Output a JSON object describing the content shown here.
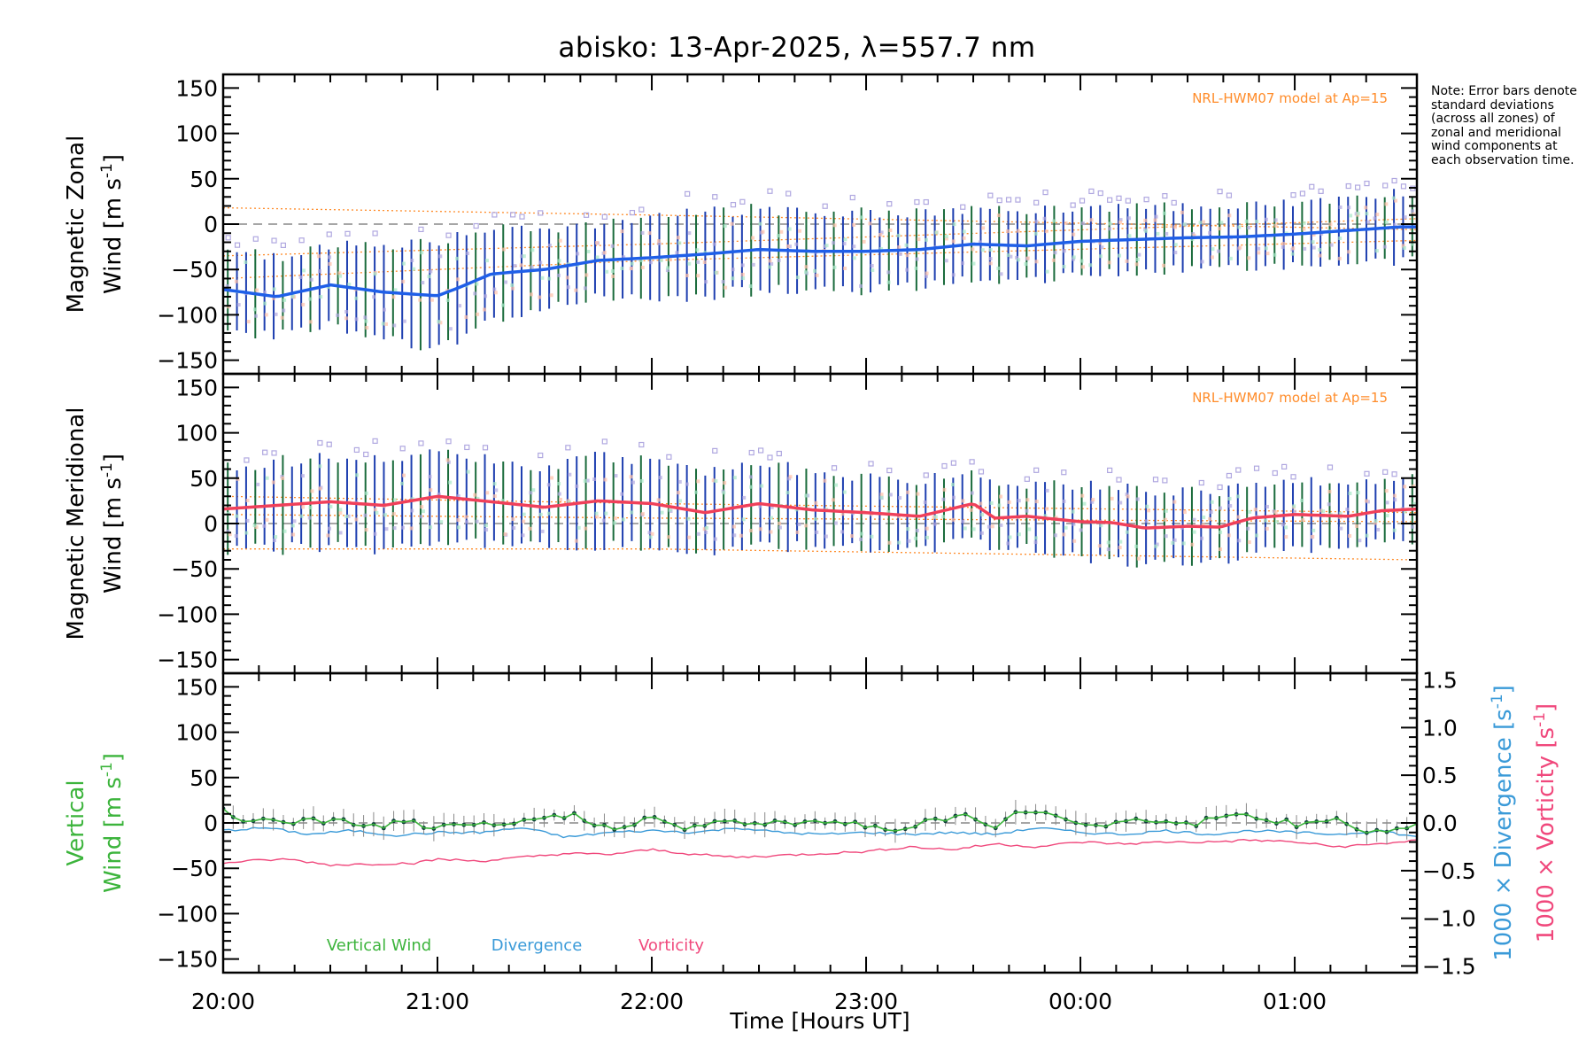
{
  "title": "abisko: 13-Apr-2025, λ=557.7 nm",
  "note": "Note: Error bars denote standard deviations (across all zones) of zonal and meridional wind components at each observation time.",
  "xlabel": "Time [Hours UT]",
  "colors": {
    "zonal": "#1f5fe8",
    "meridional": "#f0405a",
    "vertical": "#3cb43c",
    "divergence": "#3a9ad8",
    "vorticity": "#f0487c",
    "errbar": "#1e3fb0",
    "errbar_alt": "#1a6b3c",
    "model": "#ff8c2a",
    "scatter": "#b0a8e0"
  },
  "chart_data": [
    {
      "type": "line",
      "panel": "zonal",
      "ylabel_line1": "Magnetic Zonal",
      "ylabel_line2": "Wind [m s",
      "ylabel_sup": "-1",
      "ylabel_end": "]",
      "ylim": [
        -165,
        165
      ],
      "yticks": [
        -150,
        -100,
        -50,
        0,
        50,
        100,
        150
      ],
      "xlim": [
        20.0,
        25.57
      ],
      "xticks": [
        20,
        21,
        22,
        23,
        24,
        25
      ],
      "xticklabels": [
        "20:00",
        "21:00",
        "22:00",
        "23:00",
        "00:00",
        "01:00"
      ],
      "model_label": "NRL-HWM07 model at Ap=15",
      "zero_dashed": true,
      "series": [
        {
          "kind": "mean",
          "x": [
            20.0,
            20.25,
            20.5,
            20.75,
            21.0,
            21.1,
            21.25,
            21.5,
            21.75,
            22.0,
            22.25,
            22.5,
            22.75,
            23.0,
            23.25,
            23.5,
            23.75,
            24.0,
            24.25,
            24.5,
            24.75,
            25.0,
            25.25,
            25.5
          ],
          "y": [
            -72,
            -80,
            -67,
            -75,
            -79,
            -70,
            -55,
            -50,
            -40,
            -37,
            -33,
            -28,
            -30,
            -30,
            -28,
            -22,
            -24,
            -19,
            -17,
            -15,
            -14,
            -11,
            -7,
            -3
          ],
          "err": [
            45,
            42,
            45,
            50,
            55,
            58,
            48,
            45,
            42,
            45,
            45,
            45,
            45,
            42,
            40,
            38,
            38,
            36,
            35,
            35,
            35,
            35,
            35,
            38
          ]
        },
        {
          "kind": "model",
          "curves": [
            {
              "x": [
                20.0,
                22.0,
                25.57
              ],
              "y": [
                18,
                10,
                -6
              ]
            },
            {
              "x": [
                20.0,
                22.0,
                25.57
              ],
              "y": [
                -35,
                -22,
                6
              ]
            },
            {
              "x": [
                20.0,
                22.0,
                25.57
              ],
              "y": [
                -60,
                -40,
                -18
              ]
            }
          ]
        }
      ]
    },
    {
      "type": "line",
      "panel": "meridional",
      "ylabel_line1": "Magnetic Meridional",
      "ylabel_line2": "Wind [m s",
      "ylabel_sup": "-1",
      "ylabel_end": "]",
      "ylim": [
        -165,
        165
      ],
      "yticks": [
        -150,
        -100,
        -50,
        0,
        50,
        100,
        150
      ],
      "xlim": [
        20.0,
        25.57
      ],
      "xticks": [
        20,
        21,
        22,
        23,
        24,
        25
      ],
      "model_label": "NRL-HWM07 model at Ap=15",
      "zero_dashed": true,
      "series": [
        {
          "kind": "mean",
          "x": [
            20.0,
            20.25,
            20.5,
            20.75,
            21.0,
            21.25,
            21.5,
            21.75,
            22.0,
            22.25,
            22.5,
            22.75,
            23.0,
            23.25,
            23.5,
            23.6,
            23.75,
            24.0,
            24.15,
            24.3,
            24.5,
            24.65,
            24.8,
            25.0,
            25.25,
            25.4,
            25.57
          ],
          "y": [
            16,
            20,
            24,
            20,
            30,
            24,
            18,
            25,
            22,
            12,
            22,
            15,
            12,
            8,
            22,
            6,
            8,
            2,
            1,
            -5,
            -3,
            -4,
            6,
            10,
            8,
            14,
            16
          ],
          "err": [
            45,
            48,
            50,
            50,
            52,
            48,
            45,
            50,
            48,
            42,
            48,
            40,
            40,
            38,
            40,
            35,
            35,
            40,
            40,
            40,
            40,
            40,
            38,
            38,
            35,
            35,
            38
          ]
        },
        {
          "kind": "model",
          "curves": [
            {
              "x": [
                20.0,
                22.0,
                25.57
              ],
              "y": [
                -28,
                -28,
                -40
              ]
            },
            {
              "x": [
                20.0,
                22.0,
                25.57
              ],
              "y": [
                10,
                6,
                2
              ]
            },
            {
              "x": [
                20.0,
                22.0,
                25.57
              ],
              "y": [
                30,
                22,
                12
              ]
            }
          ]
        }
      ]
    },
    {
      "type": "line",
      "panel": "vertical",
      "ylabel_line1": "Vertical",
      "ylabel_line2": "Wind [m s",
      "ylabel_sup": "-1",
      "ylabel_end": "]",
      "right_label_div": "1000 × Divergence [s",
      "right_label_vort": "1000 × Vorticity [s",
      "right_sup": "-1",
      "right_end": "]",
      "ylim": [
        -165,
        165
      ],
      "yticks": [
        -150,
        -100,
        -50,
        0,
        50,
        100,
        150
      ],
      "y2lim": [
        -1.57,
        1.57
      ],
      "y2ticks": [
        -1.5,
        -1.0,
        -0.5,
        0.0,
        0.5,
        1.0,
        1.5
      ],
      "y2ticklabels": [
        "−1.5",
        "−1.0",
        "−0.5",
        "0.0",
        "0.5",
        "1.0",
        "1.5"
      ],
      "xlim": [
        20.0,
        25.57
      ],
      "xticks": [
        20,
        21,
        22,
        23,
        24,
        25
      ],
      "zero_dashed": true,
      "legend": [
        "Vertical Wind",
        "Divergence",
        "Vorticity"
      ],
      "series": [
        {
          "name": "Vertical Wind",
          "x": [
            20.0,
            20.1,
            20.2,
            20.3,
            20.5,
            20.7,
            20.9,
            21.0,
            21.1,
            21.3,
            21.5,
            21.65,
            21.8,
            22.0,
            22.15,
            22.3,
            22.5,
            22.7,
            22.9,
            23.1,
            23.3,
            23.45,
            23.6,
            23.75,
            23.9,
            24.0,
            24.15,
            24.3,
            24.5,
            24.7,
            24.9,
            25.0,
            25.2,
            25.35,
            25.5,
            25.57
          ],
          "y": [
            12,
            3,
            5,
            0,
            3,
            -3,
            0,
            -6,
            -5,
            -2,
            5,
            8,
            -5,
            5,
            -8,
            2,
            0,
            -2,
            2,
            -8,
            2,
            10,
            -5,
            15,
            8,
            -2,
            0,
            5,
            -2,
            8,
            3,
            -2,
            5,
            -12,
            -5,
            -3
          ]
        },
        {
          "name": "Divergence",
          "axis": "right",
          "x": [
            20.0,
            20.2,
            20.4,
            20.6,
            20.8,
            21.0,
            21.2,
            21.4,
            21.6,
            21.8,
            22.0,
            22.2,
            22.4,
            22.6,
            22.8,
            23.0,
            23.2,
            23.4,
            23.6,
            23.8,
            24.0,
            24.2,
            24.4,
            24.6,
            24.8,
            25.0,
            25.2,
            25.4,
            25.57
          ],
          "y": [
            -0.08,
            -0.05,
            -0.12,
            -0.08,
            -0.13,
            -0.1,
            -0.1,
            -0.05,
            -0.15,
            -0.1,
            -0.08,
            -0.1,
            -0.05,
            -0.1,
            -0.12,
            -0.1,
            -0.12,
            -0.1,
            -0.12,
            -0.05,
            -0.1,
            -0.12,
            -0.08,
            -0.12,
            -0.08,
            -0.1,
            -0.12,
            -0.08,
            -0.15
          ]
        },
        {
          "name": "Vorticity",
          "axis": "right",
          "x": [
            20.0,
            20.1,
            20.3,
            20.5,
            20.7,
            20.9,
            21.0,
            21.2,
            21.4,
            21.6,
            21.8,
            22.0,
            22.2,
            22.4,
            22.6,
            22.8,
            23.0,
            23.2,
            23.4,
            23.6,
            23.8,
            24.0,
            24.2,
            24.4,
            24.6,
            24.8,
            25.0,
            25.2,
            25.4,
            25.57
          ],
          "y": [
            -0.42,
            -0.4,
            -0.38,
            -0.44,
            -0.43,
            -0.42,
            -0.38,
            -0.4,
            -0.36,
            -0.32,
            -0.33,
            -0.28,
            -0.33,
            -0.36,
            -0.34,
            -0.32,
            -0.3,
            -0.25,
            -0.28,
            -0.22,
            -0.25,
            -0.2,
            -0.22,
            -0.2,
            -0.2,
            -0.18,
            -0.2,
            -0.25,
            -0.22,
            -0.18
          ]
        }
      ]
    }
  ]
}
